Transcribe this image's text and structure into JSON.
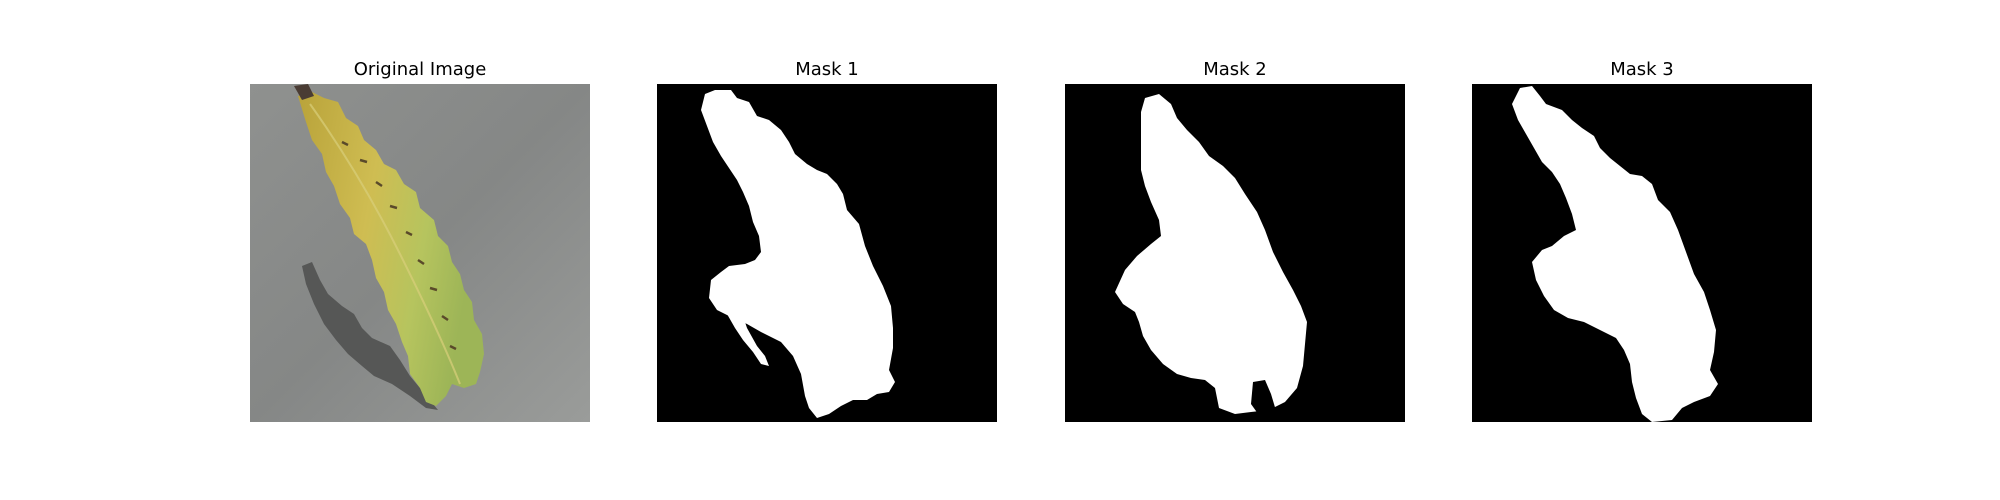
{
  "figure": {
    "panels": [
      {
        "title": "Original Image",
        "kind": "photo"
      },
      {
        "title": "Mask 1",
        "kind": "mask"
      },
      {
        "title": "Mask 2",
        "kind": "mask"
      },
      {
        "title": "Mask 3",
        "kind": "mask"
      }
    ]
  },
  "colors": {
    "mask_background": "#000000",
    "mask_foreground": "#ffffff",
    "photo_background": "#8a8c8a",
    "leaf_yellow": "#c9b64a",
    "leaf_green": "#a9bc58",
    "shadow": "#565756"
  }
}
